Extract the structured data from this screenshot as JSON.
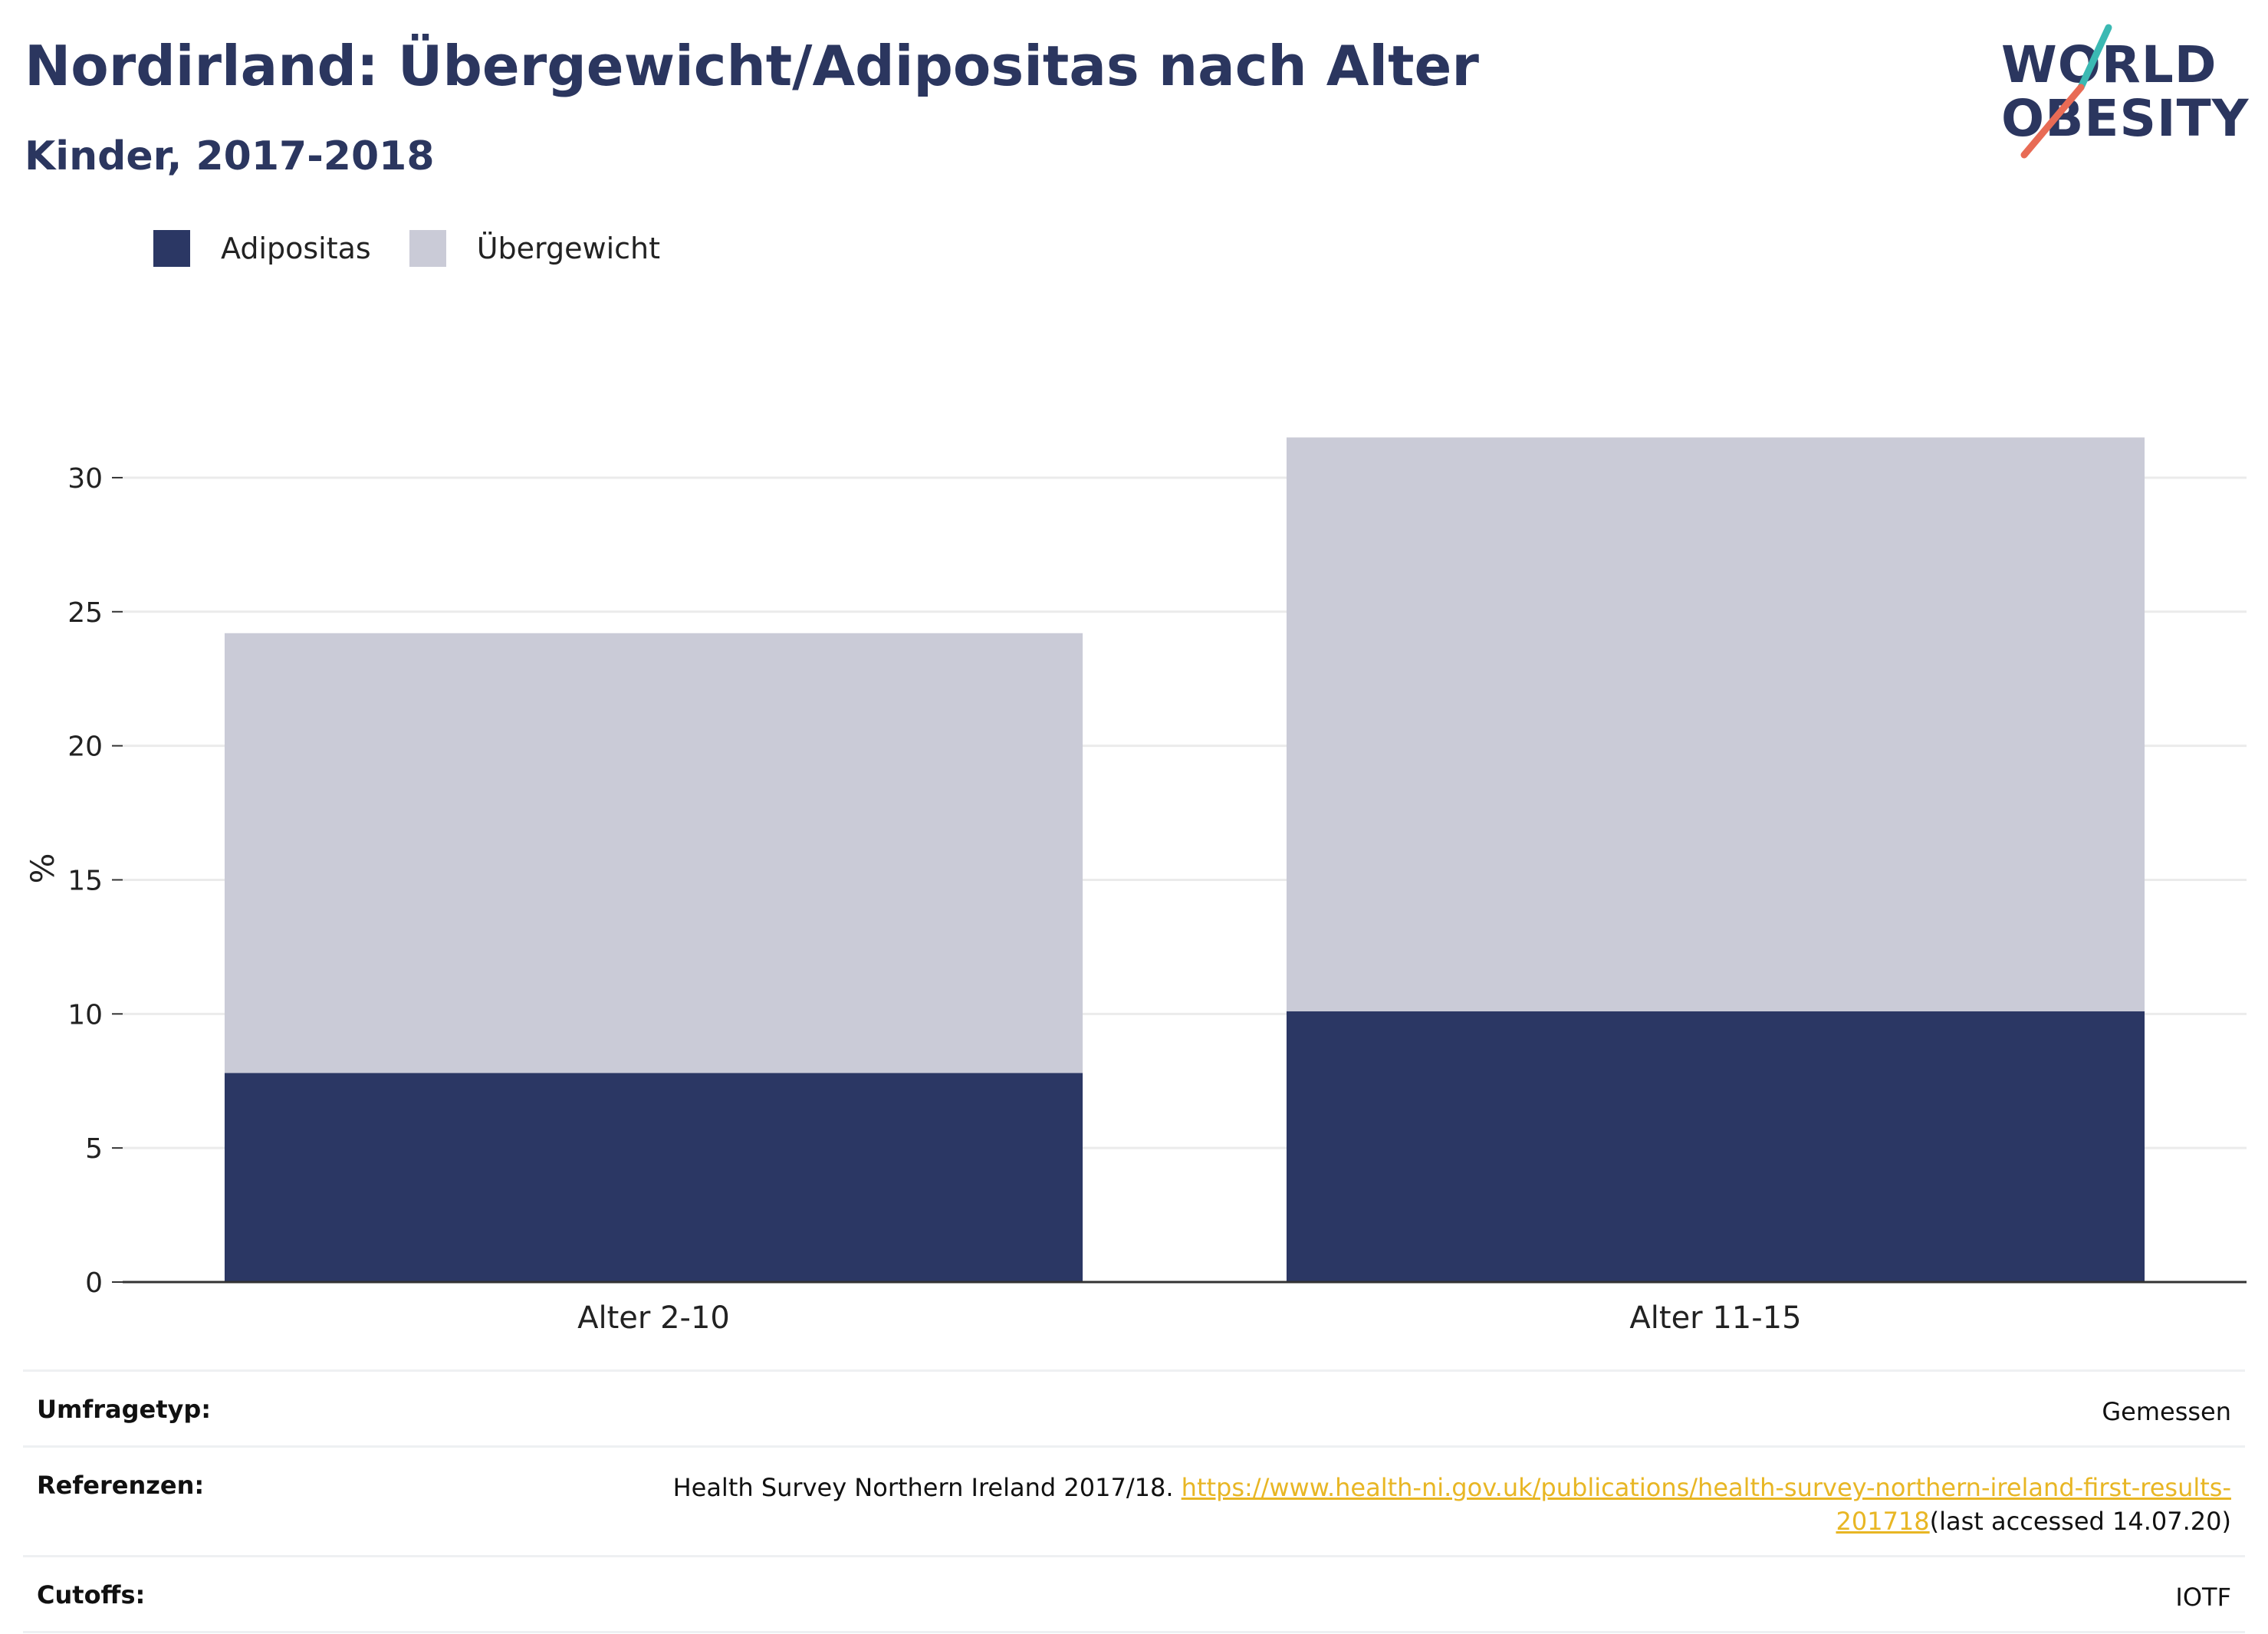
{
  "title": "Nordirland: Übergewicht/Adipositas nach Alter",
  "subtitle": "Kinder, 2017-2018",
  "logo": {
    "line1": "WORLD",
    "line2": "OBESITY"
  },
  "colors": {
    "adipositas": "#2b3764",
    "uebergewicht": "#cacbd7",
    "text": "#2b365f",
    "link": "#e8b624"
  },
  "chart_data": {
    "type": "bar",
    "stacked": true,
    "categories": [
      "Alter 2-10",
      "Alter 11-15"
    ],
    "series": [
      {
        "name": "Adipositas",
        "values": [
          7.8,
          10.1
        ]
      },
      {
        "name": "Übergewicht",
        "values": [
          16.4,
          21.4
        ]
      }
    ],
    "ylabel": "%",
    "ylim": [
      0,
      32
    ],
    "yticks": [
      0,
      5,
      10,
      15,
      20,
      25,
      30
    ],
    "grid": true,
    "legend": "top-left"
  },
  "info": {
    "survey_type_label": "Umfragetyp:",
    "survey_type_value": "Gemessen",
    "references_label": "Referenzen:",
    "references_text": "Health Survey Northern Ireland 2017/18. ",
    "references_link": "https://www.health-ni.gov.uk/publications/health-survey-northern-ireland-first-results-201718",
    "references_suffix": "(last accessed 14.07.20)",
    "cutoffs_label": "Cutoffs:",
    "cutoffs_value": "IOTF"
  }
}
